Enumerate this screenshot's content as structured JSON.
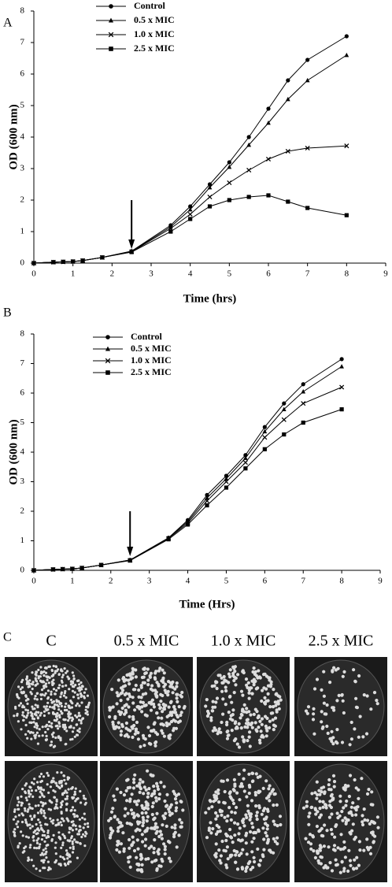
{
  "chart_data": [
    {
      "type": "line",
      "label": "A",
      "x_label": "Time (hrs)",
      "y_label": "OD (600 nm)",
      "x": [
        0,
        0.5,
        0.75,
        1,
        1.25,
        1.75,
        2.5,
        3.5,
        4,
        4.5,
        5,
        5.5,
        6,
        6.5,
        7,
        8
      ],
      "xlim": [
        0,
        9
      ],
      "xticks": [
        0,
        1,
        2,
        3,
        4,
        5,
        6,
        7,
        8,
        9
      ],
      "ylim": [
        0,
        8
      ],
      "yticks": [
        0,
        1,
        2,
        3,
        4,
        5,
        6,
        7,
        8
      ],
      "legend": "top-left",
      "grid": false,
      "series": [
        {
          "name": "Control",
          "color": "#000000",
          "marker": "circle",
          "values": [
            0,
            0.03,
            0.04,
            0.05,
            0.08,
            0.18,
            0.38,
            1.2,
            1.8,
            2.5,
            3.2,
            4.0,
            4.9,
            5.8,
            6.45,
            7.2
          ]
        },
        {
          "name": "0.5 x MIC",
          "color": "#000000",
          "marker": "triangle",
          "values": [
            0,
            0.03,
            0.04,
            0.05,
            0.08,
            0.18,
            0.37,
            1.15,
            1.7,
            2.4,
            3.05,
            3.75,
            4.45,
            5.2,
            5.8,
            6.6
          ]
        },
        {
          "name": "1.0 x MIC",
          "color": "#000000",
          "marker": "x",
          "values": [
            0,
            0.03,
            0.04,
            0.05,
            0.08,
            0.18,
            0.36,
            1.1,
            1.55,
            2.1,
            2.55,
            2.95,
            3.3,
            3.55,
            3.65,
            3.72
          ]
        },
        {
          "name": "2.5 x MIC",
          "color": "#000000",
          "marker": "square",
          "values": [
            0,
            0.03,
            0.04,
            0.05,
            0.08,
            0.18,
            0.35,
            1.0,
            1.4,
            1.8,
            2.0,
            2.1,
            2.15,
            1.95,
            1.75,
            1.52
          ]
        }
      ]
    },
    {
      "type": "line",
      "label": "B",
      "x_label": "Time (Hrs)",
      "y_label": "OD (600 nm)",
      "x": [
        0,
        0.5,
        0.75,
        1,
        1.25,
        1.75,
        2.5,
        3.5,
        4,
        4.5,
        5,
        5.5,
        6,
        6.5,
        7,
        8
      ],
      "xlim": [
        0,
        9
      ],
      "xticks": [
        0,
        1,
        2,
        3,
        4,
        5,
        6,
        7,
        8,
        9
      ],
      "ylim": [
        0,
        8
      ],
      "yticks": [
        0,
        1,
        2,
        3,
        4,
        5,
        6,
        7,
        8
      ],
      "legend": "top-left",
      "grid": false,
      "series": [
        {
          "name": "Control",
          "color": "#000000",
          "marker": "circle",
          "values": [
            0,
            0.03,
            0.04,
            0.05,
            0.08,
            0.18,
            0.35,
            1.1,
            1.7,
            2.55,
            3.2,
            3.9,
            4.85,
            5.65,
            6.3,
            7.15
          ]
        },
        {
          "name": "0.5 x MIC",
          "color": "#000000",
          "marker": "triangle",
          "values": [
            0,
            0.03,
            0.04,
            0.05,
            0.08,
            0.18,
            0.35,
            1.1,
            1.65,
            2.45,
            3.1,
            3.8,
            4.7,
            5.45,
            6.05,
            6.9
          ]
        },
        {
          "name": "1.0 x MIC",
          "color": "#000000",
          "marker": "x",
          "values": [
            0,
            0.03,
            0.04,
            0.05,
            0.08,
            0.18,
            0.34,
            1.08,
            1.6,
            2.35,
            3.0,
            3.65,
            4.5,
            5.1,
            5.65,
            6.2
          ]
        },
        {
          "name": "2.5 x MIC",
          "color": "#000000",
          "marker": "square",
          "values": [
            0,
            0.03,
            0.04,
            0.05,
            0.08,
            0.18,
            0.33,
            1.05,
            1.55,
            2.2,
            2.8,
            3.45,
            4.1,
            4.6,
            5.0,
            5.45
          ]
        }
      ]
    }
  ],
  "panel_c": {
    "label": "C",
    "columns": [
      "C",
      "0.5 x MIC",
      "1.0 x MIC",
      "2.5 x MIC"
    ]
  }
}
